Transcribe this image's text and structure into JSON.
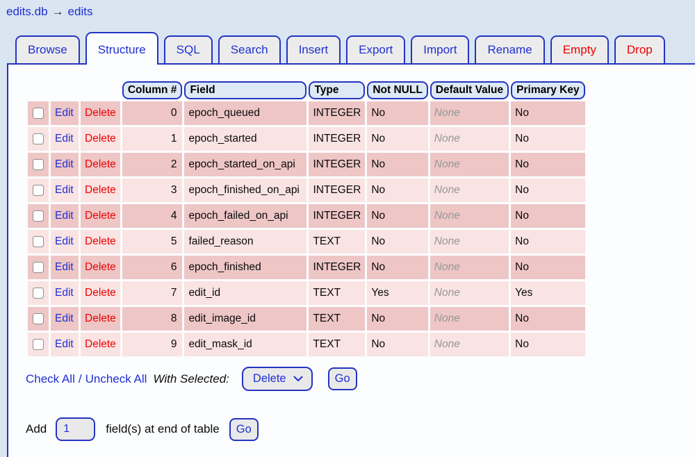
{
  "breadcrumb": {
    "database": "edits.db",
    "arrow": "→",
    "table": "edits"
  },
  "tabs": [
    {
      "label": "Browse",
      "active": false,
      "danger": false
    },
    {
      "label": "Structure",
      "active": true,
      "danger": false
    },
    {
      "label": "SQL",
      "active": false,
      "danger": false
    },
    {
      "label": "Search",
      "active": false,
      "danger": false
    },
    {
      "label": "Insert",
      "active": false,
      "danger": false
    },
    {
      "label": "Export",
      "active": false,
      "danger": false
    },
    {
      "label": "Import",
      "active": false,
      "danger": false
    },
    {
      "label": "Rename",
      "active": false,
      "danger": false
    },
    {
      "label": "Empty",
      "active": false,
      "danger": true
    },
    {
      "label": "Drop",
      "active": false,
      "danger": true
    }
  ],
  "structure_table": {
    "headers": [
      "Column #",
      "Field",
      "Type",
      "Not NULL",
      "Default Value",
      "Primary Key"
    ],
    "row_actions": {
      "edit": "Edit",
      "delete": "Delete"
    },
    "rows": [
      {
        "column": "0",
        "field": "epoch_queued",
        "type": "INTEGER",
        "not_null": "No",
        "default": "None",
        "primary_key": "No"
      },
      {
        "column": "1",
        "field": "epoch_started",
        "type": "INTEGER",
        "not_null": "No",
        "default": "None",
        "primary_key": "No"
      },
      {
        "column": "2",
        "field": "epoch_started_on_api",
        "type": "INTEGER",
        "not_null": "No",
        "default": "None",
        "primary_key": "No"
      },
      {
        "column": "3",
        "field": "epoch_finished_on_api",
        "type": "INTEGER",
        "not_null": "No",
        "default": "None",
        "primary_key": "No"
      },
      {
        "column": "4",
        "field": "epoch_failed_on_api",
        "type": "INTEGER",
        "not_null": "No",
        "default": "None",
        "primary_key": "No"
      },
      {
        "column": "5",
        "field": "failed_reason",
        "type": "TEXT",
        "not_null": "No",
        "default": "None",
        "primary_key": "No"
      },
      {
        "column": "6",
        "field": "epoch_finished",
        "type": "INTEGER",
        "not_null": "No",
        "default": "None",
        "primary_key": "No"
      },
      {
        "column": "7",
        "field": "edit_id",
        "type": "TEXT",
        "not_null": "Yes",
        "default": "None",
        "primary_key": "Yes"
      },
      {
        "column": "8",
        "field": "edit_image_id",
        "type": "TEXT",
        "not_null": "No",
        "default": "None",
        "primary_key": "No"
      },
      {
        "column": "9",
        "field": "edit_mask_id",
        "type": "TEXT",
        "not_null": "No",
        "default": "None",
        "primary_key": "No"
      }
    ]
  },
  "selection_bar": {
    "check_all": "Check All",
    "separator": "/",
    "uncheck_all": "Uncheck All",
    "with_selected_label": "With Selected:",
    "action_value": "Delete",
    "go_label": "Go"
  },
  "add_fields_bar": {
    "prefix": "Add",
    "count_value": "1",
    "suffix": "field(s) at end of table",
    "go_label": "Go"
  },
  "colors": {
    "page_background": "#d9e5f1",
    "panel_background": "#fbfdfe",
    "accent_blue": "#2434c4",
    "link_blue": "#1f2fd0",
    "danger_red": "#ee0000",
    "row_dark": "#eec6c6",
    "row_light": "#fae3e3",
    "header_pill_background": "#dde9f5",
    "muted_gray": "#979797"
  }
}
